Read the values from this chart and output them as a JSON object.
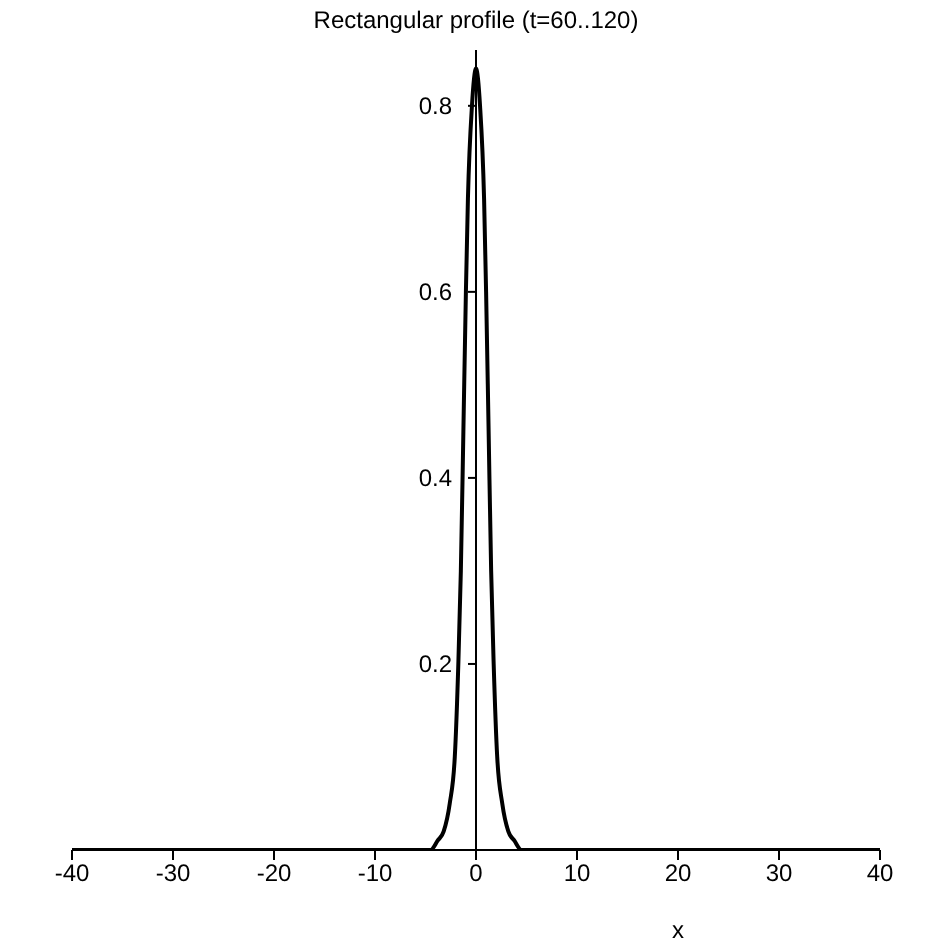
{
  "chart_data": {
    "type": "line",
    "title": "Rectangular profile (t=60..120)",
    "xlabel": "x",
    "x": [
      -40,
      -6,
      -4.5,
      -3.8,
      -3.2,
      -2.6,
      -2.1,
      -1.75,
      -1.5,
      -1.25,
      -1,
      -0.8,
      -0.4,
      0,
      0.4,
      0.8,
      1,
      1.25,
      1.5,
      1.75,
      2.1,
      2.6,
      3.2,
      3.8,
      4.5,
      6,
      40
    ],
    "series": [
      {
        "color": "#000000",
        "values": [
          0,
          0,
          0,
          0.01,
          0.02,
          0.05,
          0.1,
          0.2,
          0.3,
          0.45,
          0.6,
          0.7,
          0.8,
          0.84,
          0.8,
          0.7,
          0.6,
          0.45,
          0.3,
          0.2,
          0.1,
          0.05,
          0.02,
          0.01,
          0,
          0,
          0
        ]
      }
    ],
    "xlim": [
      -40,
      40
    ],
    "xticks": [
      -40,
      -30,
      -20,
      -10,
      0,
      10,
      20,
      30,
      40
    ],
    "ylim": [
      0,
      0.86
    ],
    "yticks": [
      0.2,
      0.4,
      0.6,
      0.8
    ]
  }
}
